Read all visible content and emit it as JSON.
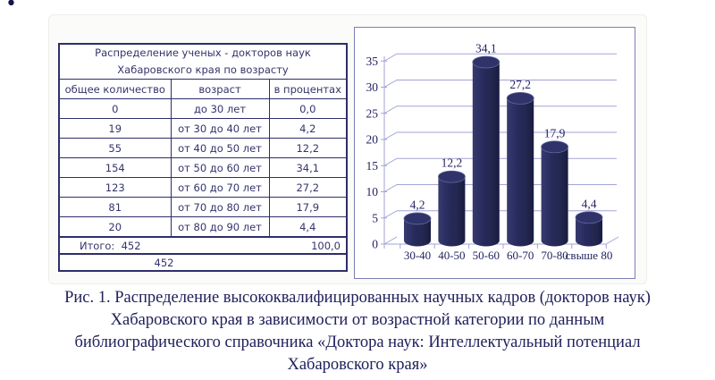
{
  "bullet": "•",
  "table": {
    "title_line1": "Распределение ученых - докторов наук",
    "title_line2": "Хабаровского края по возрасту",
    "columns": [
      "общее количество",
      "возраст",
      "в процентах"
    ],
    "rows": [
      {
        "count": "0",
        "age": "до 30 лет",
        "percent": "0,0"
      },
      {
        "count": "19",
        "age": "от 30 до 40 лет",
        "percent": "4,2"
      },
      {
        "count": "55",
        "age": "от 40 до 50 лет",
        "percent": "12,2"
      },
      {
        "count": "154",
        "age": "от 50 до 60 лет",
        "percent": "34,1"
      },
      {
        "count": "123",
        "age": "от 60 до 70 лет",
        "percent": "27,2"
      },
      {
        "count": "81",
        "age": "от 70 до 80 лет",
        "percent": "17,9"
      },
      {
        "count": "20",
        "age": "от 80 до 90 лет",
        "percent": "4,4"
      }
    ],
    "total_label": "Итого:  452",
    "total_percent": "100,0",
    "grand_total": "452"
  },
  "chart_data": {
    "type": "bar",
    "subtype": "3d-cylinder",
    "categories": [
      "30-40",
      "40-50",
      "50-60",
      "60-70",
      "70-80",
      "свыше 80"
    ],
    "values": [
      4.2,
      12.2,
      34.1,
      27.2,
      17.9,
      4.4
    ],
    "value_labels": [
      "4,2",
      "12,2",
      "34,1",
      "27,2",
      "17,9",
      "4,4"
    ],
    "title": "",
    "xlabel": "",
    "ylabel": "",
    "ylim": [
      0,
      35
    ],
    "yticks": [
      0,
      5,
      10,
      15,
      20,
      25,
      30,
      35
    ],
    "grid": true,
    "legend": "none",
    "bar_color": "#262a5c",
    "bar_color_dark": "#191c40",
    "bar_color_light": "#363a6e",
    "top_rim_color": "#61659a",
    "grid_color": "#a3a3d6",
    "axis_text_color": "#232363",
    "border_color": "#7d7dba"
  },
  "caption": {
    "lines": [
      "Рис. 1. Распределение высококвалифицированных научных кадров (докторов наук)",
      "Хабаровского края в зависимости от возрастной категории по данным",
      "библиографического справочника «Доктора наук: Интеллектуальный потенциал",
      "Хабаровского края»"
    ]
  }
}
